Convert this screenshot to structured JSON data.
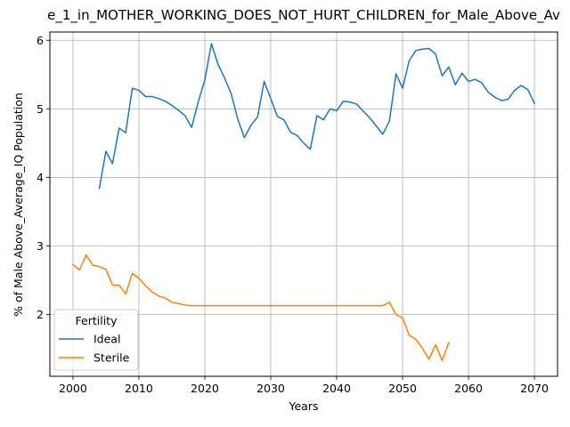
{
  "chart_data": {
    "type": "line",
    "title": "e_1_in_MOTHER_WORKING_DOES_NOT_HURT_CHILDREN_for_Male_Above_Av",
    "xlabel": "Years",
    "ylabel": "% of Male Above_Average_IQ Population",
    "xlim": [
      1996.5,
      2073.5
    ],
    "ylim": [
      1.1,
      6.12
    ],
    "xticks": [
      2000,
      2010,
      2020,
      2030,
      2040,
      2050,
      2060,
      2070
    ],
    "yticks": [
      2,
      3,
      4,
      5,
      6
    ],
    "grid": true,
    "legend": {
      "title": "Fertility",
      "placement": "lower-left"
    },
    "series": [
      {
        "name": "Ideal",
        "color": "#1f77b4",
        "points": [
          [
            2004,
            3.84
          ],
          [
            2005,
            4.38
          ],
          [
            2006,
            4.2
          ],
          [
            2007,
            4.72
          ],
          [
            2008,
            4.65
          ],
          [
            2009,
            5.3
          ],
          [
            2010,
            5.27
          ],
          [
            2011,
            5.18
          ],
          [
            2012,
            5.18
          ],
          [
            2013,
            5.15
          ],
          [
            2014,
            5.11
          ],
          [
            2015,
            5.05
          ],
          [
            2016,
            4.98
          ],
          [
            2017,
            4.9
          ],
          [
            2018,
            4.73
          ],
          [
            2019,
            5.1
          ],
          [
            2020,
            5.42
          ],
          [
            2021,
            5.95
          ],
          [
            2022,
            5.65
          ],
          [
            2023,
            5.45
          ],
          [
            2024,
            5.22
          ],
          [
            2025,
            4.85
          ],
          [
            2026,
            4.58
          ],
          [
            2027,
            4.76
          ],
          [
            2028,
            4.88
          ],
          [
            2029,
            5.4
          ],
          [
            2030,
            5.15
          ],
          [
            2031,
            4.89
          ],
          [
            2032,
            4.84
          ],
          [
            2033,
            4.66
          ],
          [
            2034,
            4.61
          ],
          [
            2035,
            4.5
          ],
          [
            2036,
            4.41
          ],
          [
            2037,
            4.9
          ],
          [
            2038,
            4.84
          ],
          [
            2039,
            5.0
          ],
          [
            2040,
            4.97
          ],
          [
            2041,
            5.11
          ],
          [
            2042,
            5.1
          ],
          [
            2043,
            5.07
          ],
          [
            2044,
            4.97
          ],
          [
            2045,
            4.87
          ],
          [
            2046,
            4.75
          ],
          [
            2047,
            4.63
          ],
          [
            2048,
            4.82
          ],
          [
            2049,
            5.51
          ],
          [
            2050,
            5.3
          ],
          [
            2051,
            5.7
          ],
          [
            2052,
            5.85
          ],
          [
            2053,
            5.87
          ],
          [
            2054,
            5.88
          ],
          [
            2055,
            5.8
          ],
          [
            2056,
            5.48
          ],
          [
            2057,
            5.61
          ],
          [
            2058,
            5.35
          ],
          [
            2059,
            5.52
          ],
          [
            2060,
            5.4
          ],
          [
            2061,
            5.43
          ],
          [
            2062,
            5.38
          ],
          [
            2063,
            5.24
          ],
          [
            2064,
            5.17
          ],
          [
            2065,
            5.12
          ],
          [
            2066,
            5.14
          ],
          [
            2067,
            5.27
          ],
          [
            2068,
            5.34
          ],
          [
            2069,
            5.28
          ],
          [
            2070,
            5.08
          ]
        ]
      },
      {
        "name": "Sterile",
        "color": "#ff7f0e",
        "points": [
          [
            2000,
            2.73
          ],
          [
            2001,
            2.65
          ],
          [
            2002,
            2.87
          ],
          [
            2003,
            2.72
          ],
          [
            2004,
            2.7
          ],
          [
            2005,
            2.66
          ],
          [
            2006,
            2.43
          ],
          [
            2007,
            2.43
          ],
          [
            2008,
            2.3
          ],
          [
            2009,
            2.6
          ],
          [
            2010,
            2.53
          ],
          [
            2011,
            2.42
          ],
          [
            2012,
            2.33
          ],
          [
            2013,
            2.27
          ],
          [
            2014,
            2.24
          ],
          [
            2015,
            2.18
          ],
          [
            2016,
            2.16
          ],
          [
            2017,
            2.14
          ],
          [
            2018,
            2.13
          ],
          [
            2019,
            2.13
          ],
          [
            2020,
            2.13
          ],
          [
            2025,
            2.13
          ],
          [
            2030,
            2.13
          ],
          [
            2035,
            2.13
          ],
          [
            2040,
            2.13
          ],
          [
            2045,
            2.13
          ],
          [
            2047,
            2.13
          ],
          [
            2048,
            2.18
          ],
          [
            2049,
            2.0
          ],
          [
            2050,
            1.95
          ],
          [
            2051,
            1.7
          ],
          [
            2052,
            1.64
          ],
          [
            2053,
            1.51
          ],
          [
            2054,
            1.35
          ],
          [
            2055,
            1.56
          ],
          [
            2056,
            1.33
          ],
          [
            2057,
            1.59
          ]
        ]
      }
    ]
  }
}
